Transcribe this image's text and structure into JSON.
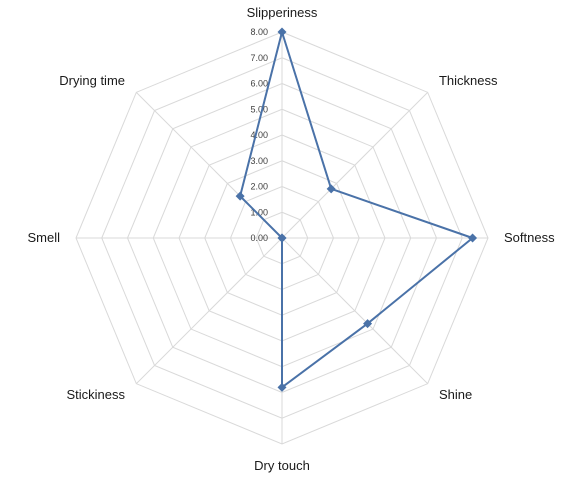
{
  "chart_data": {
    "type": "radar",
    "title": "",
    "categories": [
      "Slipperiness",
      "Thickness",
      "Softness",
      "Shine",
      "Dry touch",
      "Stickiness",
      "Smell",
      "Drying time"
    ],
    "series": [
      {
        "values": [
          8.0,
          2.7,
          7.4,
          4.7,
          5.8,
          0.0,
          0.0,
          2.3
        ]
      }
    ],
    "rlim": [
      0,
      8
    ],
    "ticks": [
      "0.00",
      "1.00",
      "2.00",
      "3.00",
      "4.00",
      "5.00",
      "6.00",
      "7.00",
      "8.00"
    ],
    "grid": true,
    "legend": "none",
    "colors": {
      "series": "#4a72a8",
      "grid": "#d9d9d9"
    }
  }
}
